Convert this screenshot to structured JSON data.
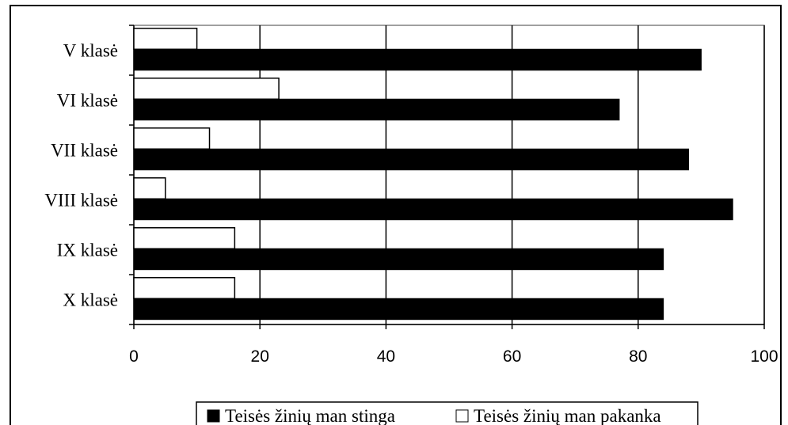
{
  "chart_data": {
    "type": "bar",
    "orientation": "horizontal",
    "categories": [
      "V klasė",
      "VI klasė",
      "VII klasė",
      "VIII klasė",
      "IX klasė",
      "X klasė"
    ],
    "series": [
      {
        "name": "Teisės žinių man stinga",
        "values": [
          90,
          77,
          88,
          95,
          84,
          84
        ],
        "color": "#000000"
      },
      {
        "name": "Teisės žinių man pakanka",
        "values": [
          10,
          23,
          12,
          5,
          16,
          16
        ],
        "color": "#ffffff"
      }
    ],
    "xlim": [
      0,
      100
    ],
    "xticks": [
      0,
      20,
      40,
      60,
      80,
      100
    ],
    "grid": true,
    "legend_position": "bottom"
  }
}
